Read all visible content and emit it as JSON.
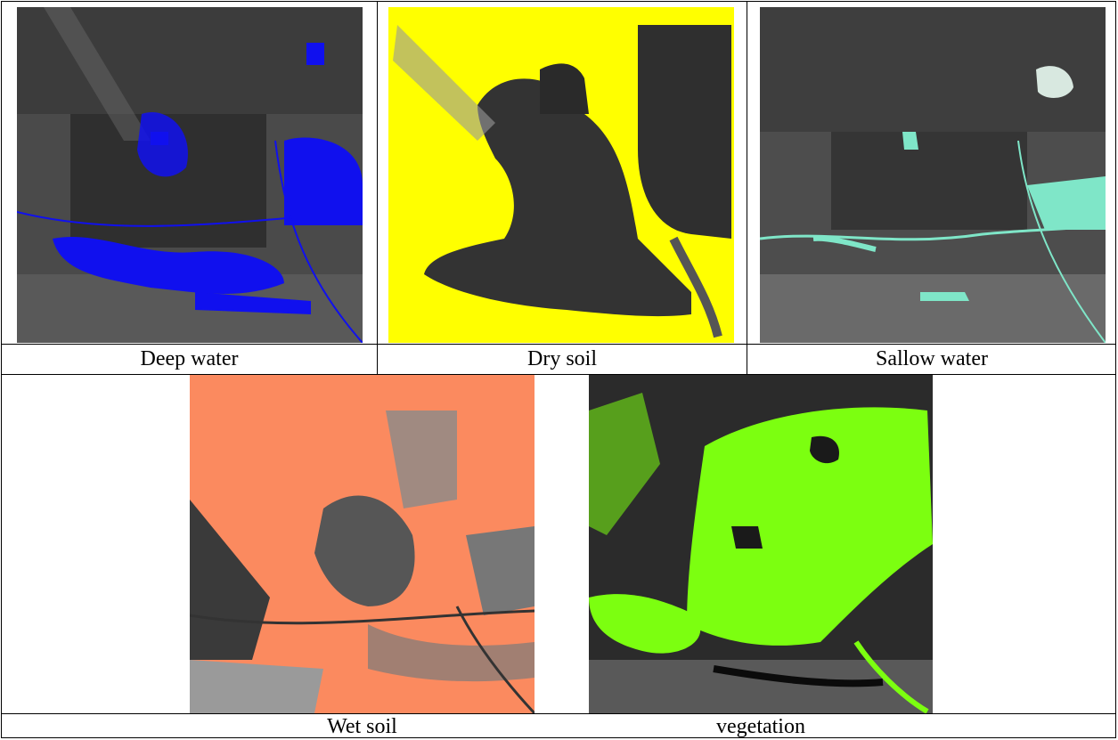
{
  "figure": {
    "panels": [
      {
        "id": "deep-water",
        "caption": "Deep water",
        "overlay_color": "#1010ee"
      },
      {
        "id": "dry-soil",
        "caption": "Dry soil",
        "overlay_color": "#ffff00"
      },
      {
        "id": "shallow-water",
        "caption": "Sallow water",
        "overlay_color": "#7fe6c8"
      },
      {
        "id": "wet-soil",
        "caption": "Wet soil",
        "overlay_color": "#fb8a5f"
      },
      {
        "id": "vegetation",
        "caption": "vegetation",
        "overlay_color": "#7cff10"
      }
    ]
  }
}
